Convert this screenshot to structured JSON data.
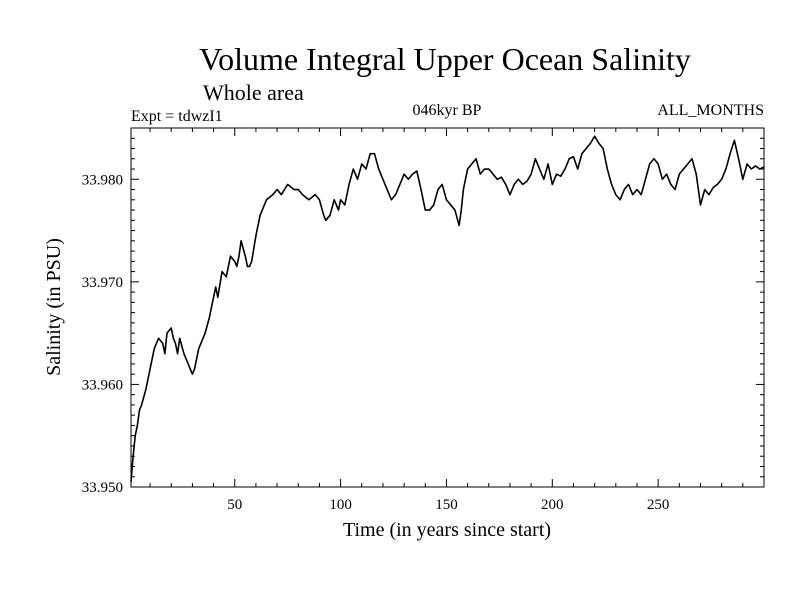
{
  "colors": {
    "background": "#ffffff",
    "line": "#000000",
    "axis": "#000000"
  },
  "chart_data": {
    "type": "line",
    "title": "Volume Integral Upper Ocean Salinity",
    "subtitle": "Whole area",
    "annotations": {
      "left": "Expt = tdwzI1",
      "center": "046kyr BP",
      "right": "ALL_MONTHS"
    },
    "xlabel": "Time (in years since start)",
    "ylabel": "Salinity (in PSU)",
    "xlim": [
      1,
      300
    ],
    "ylim": [
      33.95,
      33.985
    ],
    "xticks": [
      50,
      100,
      150,
      200,
      250
    ],
    "xtick_labels": [
      "50",
      "100",
      "150",
      "200",
      "250"
    ],
    "yticks": [
      33.95,
      33.96,
      33.97,
      33.98
    ],
    "ytick_labels": [
      "33.950",
      "33.960",
      "33.970",
      "33.980"
    ],
    "series": [
      {
        "name": "Salinity",
        "x": [
          1,
          2,
          3,
          4,
          5,
          6,
          8,
          10,
          12,
          14,
          16,
          17,
          18,
          20,
          21,
          22,
          23,
          24,
          26,
          28,
          30,
          31,
          32,
          33,
          35,
          36,
          38,
          40,
          41,
          42,
          44,
          46,
          47,
          48,
          50,
          51,
          52,
          53,
          55,
          56,
          57,
          58,
          60,
          62,
          65,
          68,
          70,
          72,
          75,
          78,
          80,
          82,
          85,
          88,
          90,
          92,
          93,
          95,
          97,
          99,
          100,
          102,
          104,
          106,
          108,
          110,
          112,
          114,
          116,
          118,
          120,
          122,
          124,
          126,
          128,
          130,
          132,
          134,
          136,
          138,
          140,
          142,
          144,
          146,
          148,
          150,
          152,
          154,
          156,
          157,
          158,
          160,
          162,
          164,
          166,
          168,
          170,
          172,
          174,
          176,
          178,
          180,
          182,
          184,
          186,
          188,
          190,
          192,
          194,
          196,
          198,
          200,
          202,
          204,
          206,
          208,
          210,
          212,
          214,
          216,
          218,
          220,
          222,
          224,
          226,
          228,
          230,
          232,
          234,
          236,
          238,
          240,
          242,
          244,
          246,
          248,
          250,
          252,
          254,
          256,
          258,
          260,
          262,
          264,
          266,
          268,
          270,
          272,
          274,
          276,
          278,
          280,
          282,
          284,
          286,
          288,
          290,
          292,
          294,
          296,
          298,
          300
        ],
        "y": [
          33.9505,
          33.953,
          33.955,
          33.956,
          33.9575,
          33.958,
          33.9595,
          33.9615,
          33.9635,
          33.9645,
          33.964,
          33.963,
          33.965,
          33.9655,
          33.9645,
          33.964,
          33.963,
          33.9645,
          33.963,
          33.962,
          33.961,
          33.9615,
          33.9625,
          33.9635,
          33.9645,
          33.965,
          33.9665,
          33.9685,
          33.9695,
          33.9685,
          33.971,
          33.9705,
          33.9715,
          33.9725,
          33.972,
          33.9715,
          33.9725,
          33.974,
          33.9725,
          33.9715,
          33.9715,
          33.972,
          33.9745,
          33.9765,
          33.978,
          33.9785,
          33.979,
          33.9785,
          33.9795,
          33.979,
          33.979,
          33.9785,
          33.978,
          33.9785,
          33.978,
          33.9765,
          33.976,
          33.9765,
          33.978,
          33.977,
          33.978,
          33.9775,
          33.9795,
          33.981,
          33.98,
          33.9815,
          33.981,
          33.9825,
          33.9825,
          33.981,
          33.98,
          33.979,
          33.978,
          33.9785,
          33.9795,
          33.9805,
          33.98,
          33.9805,
          33.9808,
          33.979,
          33.977,
          33.977,
          33.9775,
          33.979,
          33.9795,
          33.978,
          33.9775,
          33.977,
          33.9755,
          33.977,
          33.979,
          33.981,
          33.9815,
          33.982,
          33.9805,
          33.981,
          33.981,
          33.9805,
          33.98,
          33.9802,
          33.9795,
          33.9785,
          33.9795,
          33.98,
          33.9795,
          33.9798,
          33.9805,
          33.982,
          33.981,
          33.98,
          33.9815,
          33.9795,
          33.9805,
          33.9803,
          33.981,
          33.982,
          33.9822,
          33.981,
          33.9825,
          33.983,
          33.9835,
          33.9842,
          33.9835,
          33.983,
          33.981,
          33.9795,
          33.9785,
          33.978,
          33.979,
          33.9795,
          33.9785,
          33.979,
          33.9785,
          33.98,
          33.9815,
          33.982,
          33.9815,
          33.98,
          33.9805,
          33.9795,
          33.979,
          33.9805,
          33.981,
          33.9815,
          33.982,
          33.9805,
          33.9775,
          33.979,
          33.9785,
          33.9792,
          33.9795,
          33.98,
          33.981,
          33.9825,
          33.9838,
          33.982,
          33.98,
          33.9815,
          33.981,
          33.9813,
          33.981,
          33.9812
        ]
      }
    ]
  }
}
